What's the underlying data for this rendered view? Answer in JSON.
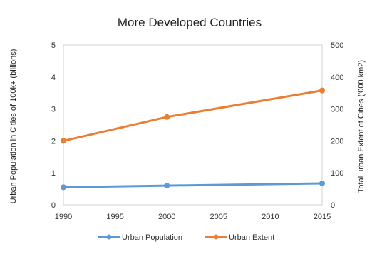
{
  "chart_data": {
    "type": "line",
    "title": "More Developed Countries",
    "x": [
      1990,
      2000,
      2015
    ],
    "x_ticks": [
      "1990",
      "1995",
      "2000",
      "2005",
      "2010",
      "2015"
    ],
    "xlim": [
      1990,
      2015
    ],
    "ylabel": "Urban Population in Cities of 100k+ (billions)",
    "ylim": [
      0,
      5
    ],
    "y_ticks": [
      "0",
      "1",
      "2",
      "3",
      "4",
      "5"
    ],
    "y2label": "Total urban Extent of Cities ('000 km2)",
    "y2lim": [
      0,
      500
    ],
    "y2_ticks": [
      "0",
      "100",
      "200",
      "300",
      "400",
      "500"
    ],
    "grid": false,
    "legend_position": "bottom",
    "series": [
      {
        "name": "Urban Population",
        "axis": "left",
        "values": [
          0.55,
          0.6,
          0.67
        ],
        "color": "#5B9BD5"
      },
      {
        "name": "Urban Extent",
        "axis": "right",
        "values": [
          200,
          275,
          358
        ],
        "color": "#ED7D31"
      }
    ]
  }
}
